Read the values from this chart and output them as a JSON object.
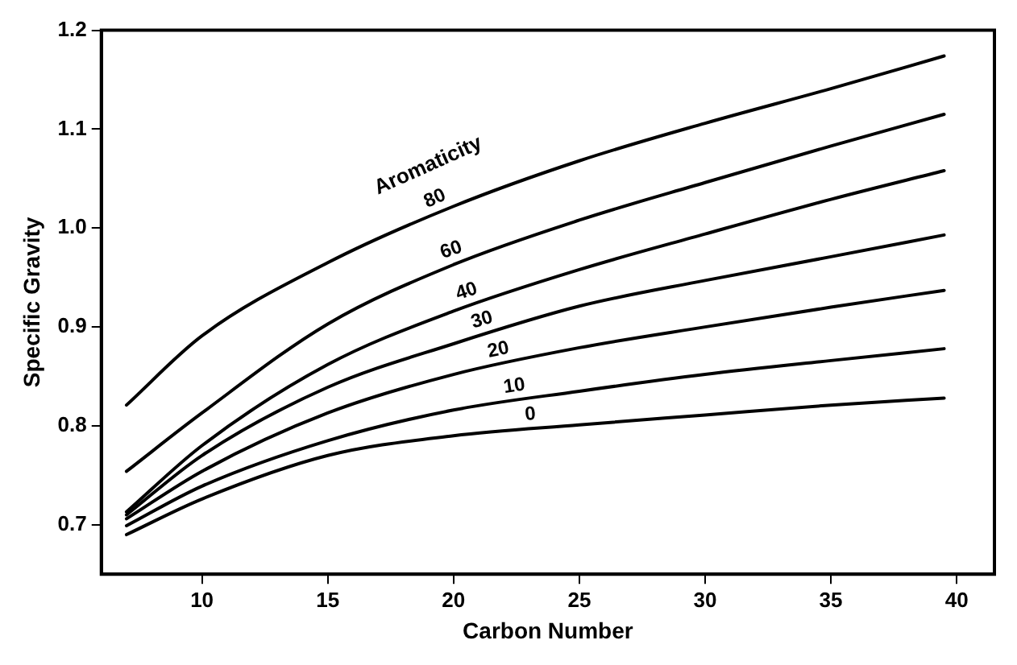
{
  "chart_data": {
    "type": "line",
    "xlabel": "Carbon Number",
    "ylabel": "Specific Gravity",
    "legend_title": "Aromaticity",
    "x": [
      7,
      10,
      15,
      20,
      25,
      30,
      35,
      39.5
    ],
    "series": [
      {
        "name": "80",
        "color": "#000000",
        "values": [
          0.821,
          0.891,
          0.965,
          1.022,
          1.068,
          1.106,
          1.141,
          1.174
        ]
      },
      {
        "name": "60",
        "color": "#000000",
        "values": [
          0.754,
          0.813,
          0.903,
          0.963,
          1.008,
          1.046,
          1.083,
          1.115
        ]
      },
      {
        "name": "40",
        "color": "#000000",
        "values": [
          0.713,
          0.78,
          0.862,
          0.916,
          0.958,
          0.994,
          1.029,
          1.058
        ]
      },
      {
        "name": "30",
        "color": "#000000",
        "values": [
          0.71,
          0.77,
          0.839,
          0.883,
          0.921,
          0.947,
          0.971,
          0.993
        ]
      },
      {
        "name": "20",
        "color": "#000000",
        "values": [
          0.706,
          0.754,
          0.813,
          0.852,
          0.879,
          0.9,
          0.92,
          0.937
        ]
      },
      {
        "name": "10",
        "color": "#000000",
        "values": [
          0.699,
          0.739,
          0.785,
          0.816,
          0.835,
          0.852,
          0.866,
          0.878
        ]
      },
      {
        "name": "0",
        "color": "#000000",
        "values": [
          0.69,
          0.726,
          0.77,
          0.79,
          0.801,
          0.811,
          0.821,
          0.828
        ]
      }
    ],
    "xlim": [
      6,
      41.5
    ],
    "xticks": [
      10,
      15,
      20,
      25,
      30,
      35,
      40
    ],
    "ylim": [
      0.65,
      1.2
    ],
    "yticks": [
      {
        "value": 0.7,
        "label": "0.7"
      },
      {
        "value": 0.8,
        "label": "0.8"
      },
      {
        "value": 0.9,
        "label": "0.9"
      },
      {
        "value": 1.0,
        "label": "1.0"
      },
      {
        "value": 1.1,
        "label": "1.1"
      },
      {
        "value": 1.2,
        "label": "1.2"
      }
    ],
    "grid": false,
    "legend": false,
    "marker": "none",
    "line_style": "solid"
  }
}
